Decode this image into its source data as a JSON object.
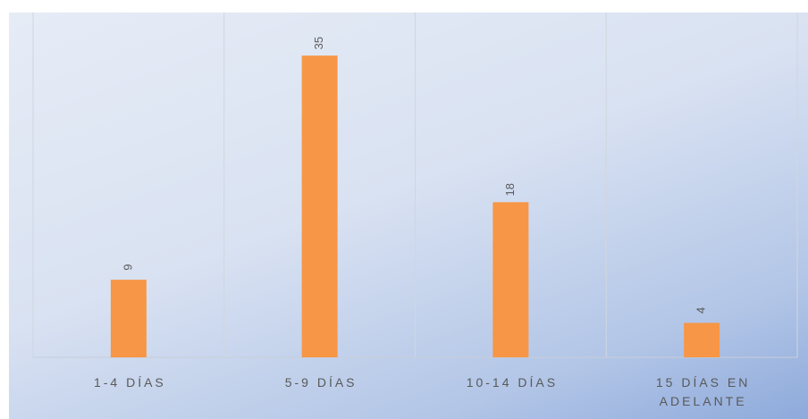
{
  "chart_data": {
    "type": "bar",
    "categories": [
      "1-4 DÍAS",
      "5-9 DÍAS",
      "10-14 DÍAS",
      "15 DÍAS EN ADELANTE"
    ],
    "values": [
      9,
      35,
      18,
      4
    ],
    "color": "#f79646",
    "ylim": [
      0,
      40
    ]
  }
}
